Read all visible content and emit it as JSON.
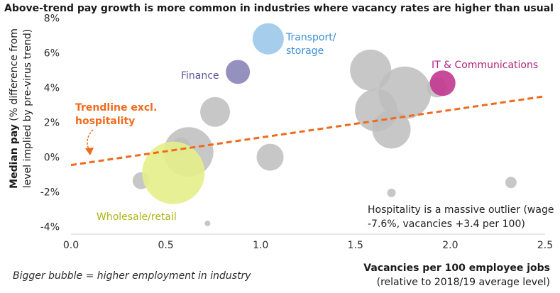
{
  "chart_data": {
    "type": "scatter",
    "title": "Above-trend pay growth is more common in industries where vacancy rates are higher than usual",
    "ylabel_bold": "Median pay",
    "ylabel_rest": " (% difference from",
    "ylabel_line2": "level implied by pre-virus trend)",
    "xlabel": "Vacancies per 100 employee jobs",
    "xlabel_sub": "(relative to 2018/19 average level)",
    "xlim": [
      0.0,
      2.5
    ],
    "ylim": [
      -4.5,
      8.5
    ],
    "x_ticks": [
      {
        "value": 0.0,
        "label": "0.0"
      },
      {
        "value": 0.5,
        "label": "0.5"
      },
      {
        "value": 1.0,
        "label": "1.0"
      },
      {
        "value": 1.5,
        "label": "1.5"
      },
      {
        "value": 2.0,
        "label": "2.0"
      },
      {
        "value": 2.5,
        "label": "2.5"
      }
    ],
    "y_ticks": [
      {
        "value": 8,
        "label": "8%"
      },
      {
        "value": 6,
        "label": "6%"
      },
      {
        "value": 4,
        "label": "4%"
      },
      {
        "value": 2,
        "label": "2%"
      },
      {
        "value": 0,
        "label": "0%"
      },
      {
        "value": -2,
        "label": "-2%"
      },
      {
        "value": -4,
        "label": "-4%"
      }
    ],
    "grid": false,
    "colors": {
      "default_bubble": "#bdbdbd",
      "transport": "#9cc8ea",
      "finance": "#8a85b8",
      "it": "#c2368f",
      "wholesale": "#e6ee8a",
      "trend": "#f06a1d"
    },
    "trendline": {
      "name": "Trendline excl. hospitality",
      "label_line1": "Trendline excl.",
      "label_line2": "hospitality",
      "x": [
        0.0,
        2.5
      ],
      "y": [
        -0.45,
        3.5
      ]
    },
    "points": [
      {
        "id": "transport",
        "x": 1.04,
        "y": 6.8,
        "size": 22,
        "color": "transport",
        "label_line1": "Transport/",
        "label_line2": "storage"
      },
      {
        "id": "finance",
        "x": 0.88,
        "y": 4.9,
        "size": 17,
        "color": "finance",
        "label_line1": "Finance",
        "label_line2": ""
      },
      {
        "id": "it",
        "x": 1.96,
        "y": 4.25,
        "size": 18,
        "color": "it",
        "label_line1": "IT & Communications",
        "label_line2": ""
      },
      {
        "id": "wholesale",
        "x": 0.54,
        "y": -0.9,
        "size": 44,
        "color": "wholesale",
        "label_line1": "Wholesale/retail",
        "label_line2": ""
      },
      {
        "id": "p1",
        "x": 1.58,
        "y": 5.0,
        "size": 29,
        "color": "default_bubble"
      },
      {
        "id": "p2",
        "x": 1.76,
        "y": 3.7,
        "size": 37,
        "color": "default_bubble"
      },
      {
        "id": "p3",
        "x": 1.93,
        "y": 4.0,
        "size": 14,
        "color": "default_bubble"
      },
      {
        "id": "p4",
        "x": 1.61,
        "y": 2.7,
        "size": 30,
        "color": "default_bubble"
      },
      {
        "id": "p5",
        "x": 1.69,
        "y": 1.6,
        "size": 27,
        "color": "default_bubble"
      },
      {
        "id": "p6",
        "x": 0.76,
        "y": 2.6,
        "size": 21,
        "color": "default_bubble"
      },
      {
        "id": "p7",
        "x": 0.62,
        "y": 0.3,
        "size": 35,
        "color": "default_bubble"
      },
      {
        "id": "p8",
        "x": 0.58,
        "y": 0.6,
        "size": 13,
        "color": "default_bubble"
      },
      {
        "id": "p9",
        "x": 1.05,
        "y": 0.0,
        "size": 19,
        "color": "default_bubble"
      },
      {
        "id": "p10",
        "x": 0.37,
        "y": -1.35,
        "size": 12,
        "color": "default_bubble"
      },
      {
        "id": "p11",
        "x": 1.69,
        "y": -2.05,
        "size": 6,
        "color": "default_bubble"
      },
      {
        "id": "p12",
        "x": 2.32,
        "y": -1.45,
        "size": 8,
        "color": "default_bubble"
      },
      {
        "id": "p13",
        "x": 0.72,
        "y": -3.8,
        "size": 4,
        "color": "default_bubble"
      }
    ],
    "annotation_outlier_line1": "Hospitality is a massive outlier (wage",
    "annotation_outlier_line2": "-7.6%, vacancies +3.4 per 100)",
    "footnote": "Bigger bubble = higher employment in industry"
  }
}
